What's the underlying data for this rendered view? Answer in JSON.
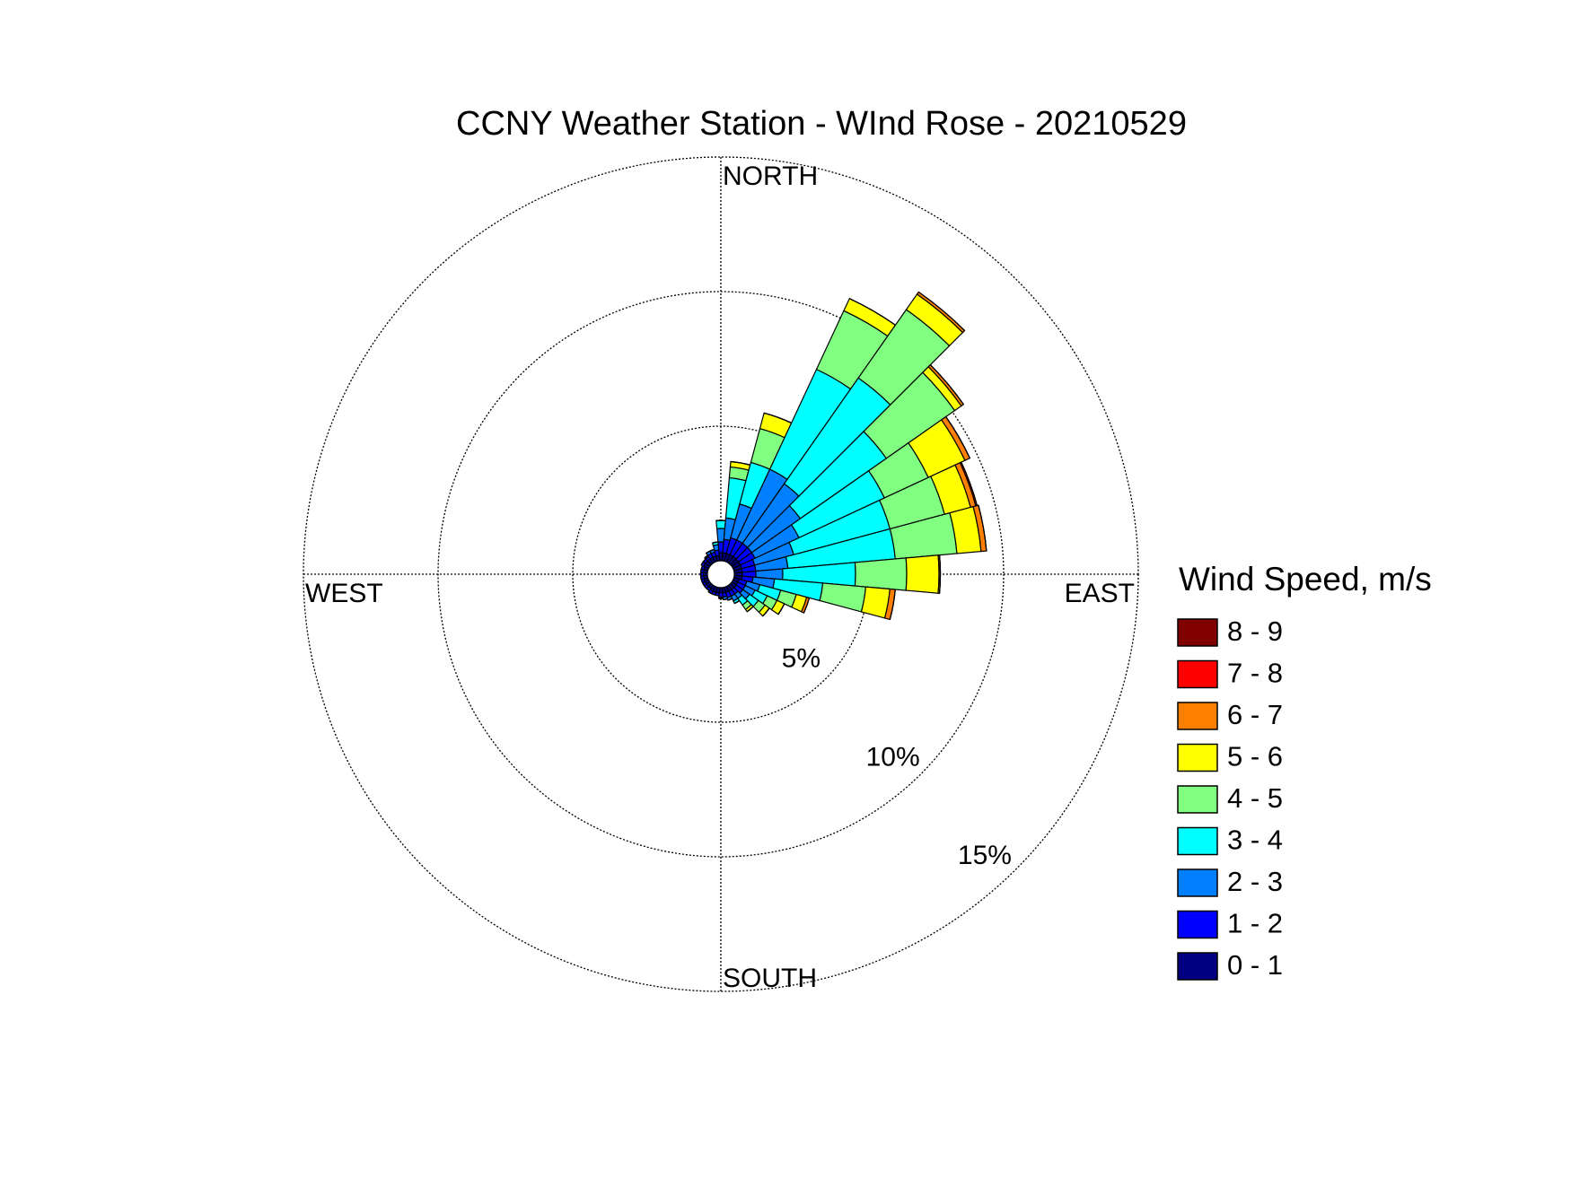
{
  "chart_data": {
    "type": "windrose",
    "title": "CCNY Weather Station - WInd Rose - 20210529",
    "legend_title": "Wind Speed, m/s",
    "compass_labels": [
      "NORTH",
      "EAST",
      "SOUTH",
      "WEST"
    ],
    "directions": [
      0,
      10,
      20,
      30,
      40,
      50,
      60,
      70,
      80,
      90,
      100,
      110,
      120,
      130,
      140,
      150,
      160,
      170,
      180,
      190,
      200,
      210,
      220,
      230,
      240,
      250,
      260,
      270,
      280,
      290,
      300,
      310,
      320,
      330,
      340,
      350
    ],
    "rlim": [
      0,
      15
    ],
    "rticks": [
      {
        "value": 5,
        "label": "5%"
      },
      {
        "value": 10,
        "label": "10%"
      },
      {
        "value": 15,
        "label": "15%"
      }
    ],
    "series": [
      {
        "name": "0 - 1",
        "color": "#000080",
        "values": [
          0.3,
          0.3,
          0.3,
          0.3,
          0.3,
          0.3,
          0.3,
          0.3,
          0.3,
          0.3,
          0.3,
          0.2,
          0.2,
          0.2,
          0.2,
          0.2,
          0.2,
          0.2,
          0.2,
          0.2,
          0.2,
          0.2,
          0.15,
          0.15,
          0.15,
          0.15,
          0.15,
          0.15,
          0.15,
          0.15,
          0.2,
          0.2,
          0.2,
          0.2,
          0.2,
          0.2
        ]
      },
      {
        "name": "1 - 2",
        "color": "#0000ff",
        "values": [
          0.4,
          0.5,
          0.6,
          0.6,
          0.6,
          0.6,
          0.6,
          0.5,
          0.5,
          0.5,
          0.4,
          0.3,
          0.3,
          0.3,
          0.2,
          0.2,
          0.2,
          0.15,
          0.15,
          0.1,
          0.1,
          0.1,
          0.1,
          0.1,
          0.1,
          0.1,
          0.1,
          0.1,
          0.1,
          0.1,
          0.1,
          0.1,
          0.1,
          0.15,
          0.15,
          0.2
        ]
      },
      {
        "name": "2 - 3",
        "color": "#0080ff",
        "values": [
          0.5,
          0.8,
          1.3,
          2.9,
          2.7,
          2.2,
          1.8,
          1.5,
          1.2,
          1.0,
          0.8,
          0.5,
          0.4,
          0.3,
          0.2,
          0.2,
          0.1,
          0.1,
          0.05,
          0,
          0,
          0,
          0,
          0,
          0,
          0,
          0,
          0,
          0,
          0,
          0,
          0,
          0.05,
          0.1,
          0.1,
          0.2
        ]
      },
      {
        "name": "3 - 4",
        "color": "#00ffff",
        "values": [
          0.3,
          1.5,
          1.6,
          4.1,
          4.8,
          3.9,
          3.5,
          3.7,
          4.0,
          2.7,
          1.8,
          0.8,
          0.5,
          0.4,
          0.3,
          0.1,
          0,
          0,
          0,
          0,
          0,
          0,
          0,
          0,
          0,
          0,
          0,
          0,
          0,
          0,
          0,
          0,
          0,
          0,
          0,
          0.1
        ]
      },
      {
        "name": "4 - 5",
        "color": "#80ff80",
        "values": [
          0,
          0.4,
          1.3,
          2.4,
          3.1,
          3.1,
          1.8,
          2.1,
          2.3,
          1.9,
          1.6,
          0.6,
          0.4,
          0.3,
          0.2,
          0,
          0,
          0,
          0,
          0,
          0,
          0,
          0,
          0,
          0,
          0,
          0,
          0,
          0,
          0,
          0,
          0,
          0,
          0,
          0,
          0
        ]
      },
      {
        "name": "5 - 6",
        "color": "#ffff00",
        "values": [
          0,
          0.2,
          0.6,
          0.5,
          0.7,
          0.3,
          1.5,
          1.0,
          0.9,
          1.2,
          0.9,
          0.4,
          0.3,
          0.2,
          0.1,
          0,
          0,
          0,
          0,
          0,
          0,
          0,
          0,
          0,
          0,
          0,
          0,
          0,
          0,
          0,
          0,
          0,
          0,
          0,
          0,
          0
        ]
      },
      {
        "name": "6 - 7",
        "color": "#ff8000",
        "values": [
          0,
          0,
          0,
          0,
          0.1,
          0.1,
          0.2,
          0.2,
          0.2,
          0.05,
          0.2,
          0.1,
          0,
          0,
          0,
          0,
          0,
          0,
          0,
          0,
          0,
          0,
          0,
          0,
          0,
          0,
          0,
          0,
          0,
          0,
          0,
          0,
          0,
          0,
          0,
          0
        ]
      },
      {
        "name": "7 - 8",
        "color": "#ff0000",
        "values": [
          0,
          0,
          0,
          0,
          0,
          0,
          0,
          0.05,
          0,
          0,
          0,
          0,
          0,
          0,
          0,
          0,
          0,
          0,
          0,
          0,
          0,
          0,
          0,
          0,
          0,
          0,
          0,
          0,
          0,
          0,
          0,
          0,
          0,
          0,
          0,
          0
        ]
      },
      {
        "name": "8 - 9",
        "color": "#800000",
        "values": [
          0,
          0,
          0,
          0,
          0,
          0,
          0,
          0,
          0,
          0,
          0,
          0,
          0,
          0,
          0,
          0,
          0,
          0,
          0,
          0,
          0,
          0,
          0,
          0,
          0,
          0,
          0,
          0,
          0,
          0,
          0,
          0,
          0,
          0,
          0,
          0
        ]
      }
    ]
  }
}
